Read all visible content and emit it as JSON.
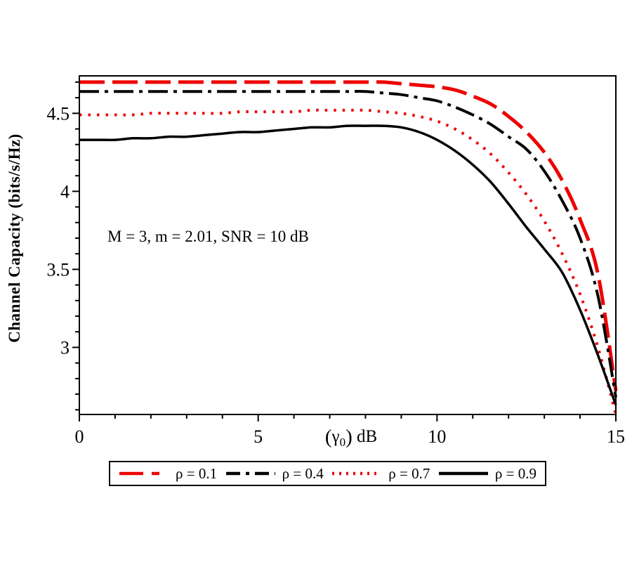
{
  "figure": {
    "background": "#ffffff",
    "frame_color": "#000000",
    "accent_red": "#ee0000",
    "accent_black": "#000000"
  },
  "chart_data": {
    "type": "line",
    "title": "",
    "ylabel": "Channel Capacity (bits/s/Hz)",
    "xlabel_parts": {
      "pre": "(",
      "symbol": "γ",
      "subscript": "0",
      "post": ")",
      "unit": " dB"
    },
    "xlabel_plain": "(γ₀) dB",
    "annotation": "M = 3, m = 2.01, SNR = 10 dB",
    "xlim": [
      0,
      15
    ],
    "ylim": [
      2.57,
      4.74
    ],
    "x_major_ticks": [
      0,
      5,
      10,
      15
    ],
    "x_tick_labels": [
      "0",
      "5",
      "10",
      "15"
    ],
    "x_minor_step": 1,
    "y_major_ticks": [
      3,
      3.5,
      4,
      4.5
    ],
    "y_tick_labels": [
      "3",
      "3.5",
      "4",
      "4.5"
    ],
    "y_minor_step": 0.1,
    "grid": false,
    "legend_position": "bottom-outside",
    "x": [
      0,
      0.5,
      1,
      1.5,
      2,
      2.5,
      3,
      3.5,
      4,
      4.5,
      5,
      5.5,
      6,
      6.5,
      7,
      7.5,
      8,
      8.5,
      9,
      9.5,
      10,
      10.5,
      11,
      11.5,
      12,
      12.5,
      13,
      13.5,
      14,
      14.5,
      15
    ],
    "series": [
      {
        "name": "ρ = 0.1",
        "color": "#ee0000",
        "style": "long-dash",
        "dash": "36 11",
        "width": 5,
        "sample_dash": "34 12 11",
        "values": [
          4.7,
          4.7,
          4.7,
          4.7,
          4.7,
          4.7,
          4.7,
          4.7,
          4.7,
          4.7,
          4.7,
          4.7,
          4.7,
          4.7,
          4.7,
          4.7,
          4.7,
          4.7,
          4.69,
          4.68,
          4.67,
          4.65,
          4.61,
          4.56,
          4.48,
          4.38,
          4.25,
          4.07,
          3.82,
          3.47,
          2.72
        ]
      },
      {
        "name": "ρ = 0.4",
        "color": "#000000",
        "style": "dash-dot",
        "dash": "28 8 5 8",
        "width": 4,
        "sample_dash": "20 8 5 8",
        "values": [
          4.64,
          4.64,
          4.64,
          4.64,
          4.64,
          4.64,
          4.64,
          4.64,
          4.64,
          4.64,
          4.64,
          4.64,
          4.64,
          4.64,
          4.64,
          4.64,
          4.64,
          4.63,
          4.62,
          4.6,
          4.58,
          4.54,
          4.49,
          4.43,
          4.35,
          4.27,
          4.13,
          3.94,
          3.7,
          3.33,
          2.68
        ]
      },
      {
        "name": "ρ = 0.7",
        "color": "#ee0000",
        "style": "dotted",
        "dash": "3.5 9",
        "width": 4,
        "sample_dash": "3 7",
        "values": [
          4.49,
          4.49,
          4.49,
          4.49,
          4.5,
          4.5,
          4.5,
          4.5,
          4.5,
          4.51,
          4.51,
          4.51,
          4.51,
          4.52,
          4.52,
          4.52,
          4.52,
          4.51,
          4.5,
          4.48,
          4.45,
          4.4,
          4.33,
          4.24,
          4.12,
          3.98,
          3.81,
          3.6,
          3.34,
          3.0,
          2.57
        ]
      },
      {
        "name": "ρ = 0.9",
        "color": "#000000",
        "style": "solid",
        "dash": "",
        "width": 3.5,
        "sample_dash": "",
        "values": [
          4.33,
          4.33,
          4.33,
          4.34,
          4.34,
          4.35,
          4.35,
          4.36,
          4.37,
          4.38,
          4.38,
          4.39,
          4.4,
          4.41,
          4.41,
          4.42,
          4.42,
          4.42,
          4.41,
          4.38,
          4.33,
          4.26,
          4.17,
          4.06,
          3.92,
          3.77,
          3.63,
          3.48,
          3.24,
          2.95,
          2.63
        ]
      }
    ]
  }
}
